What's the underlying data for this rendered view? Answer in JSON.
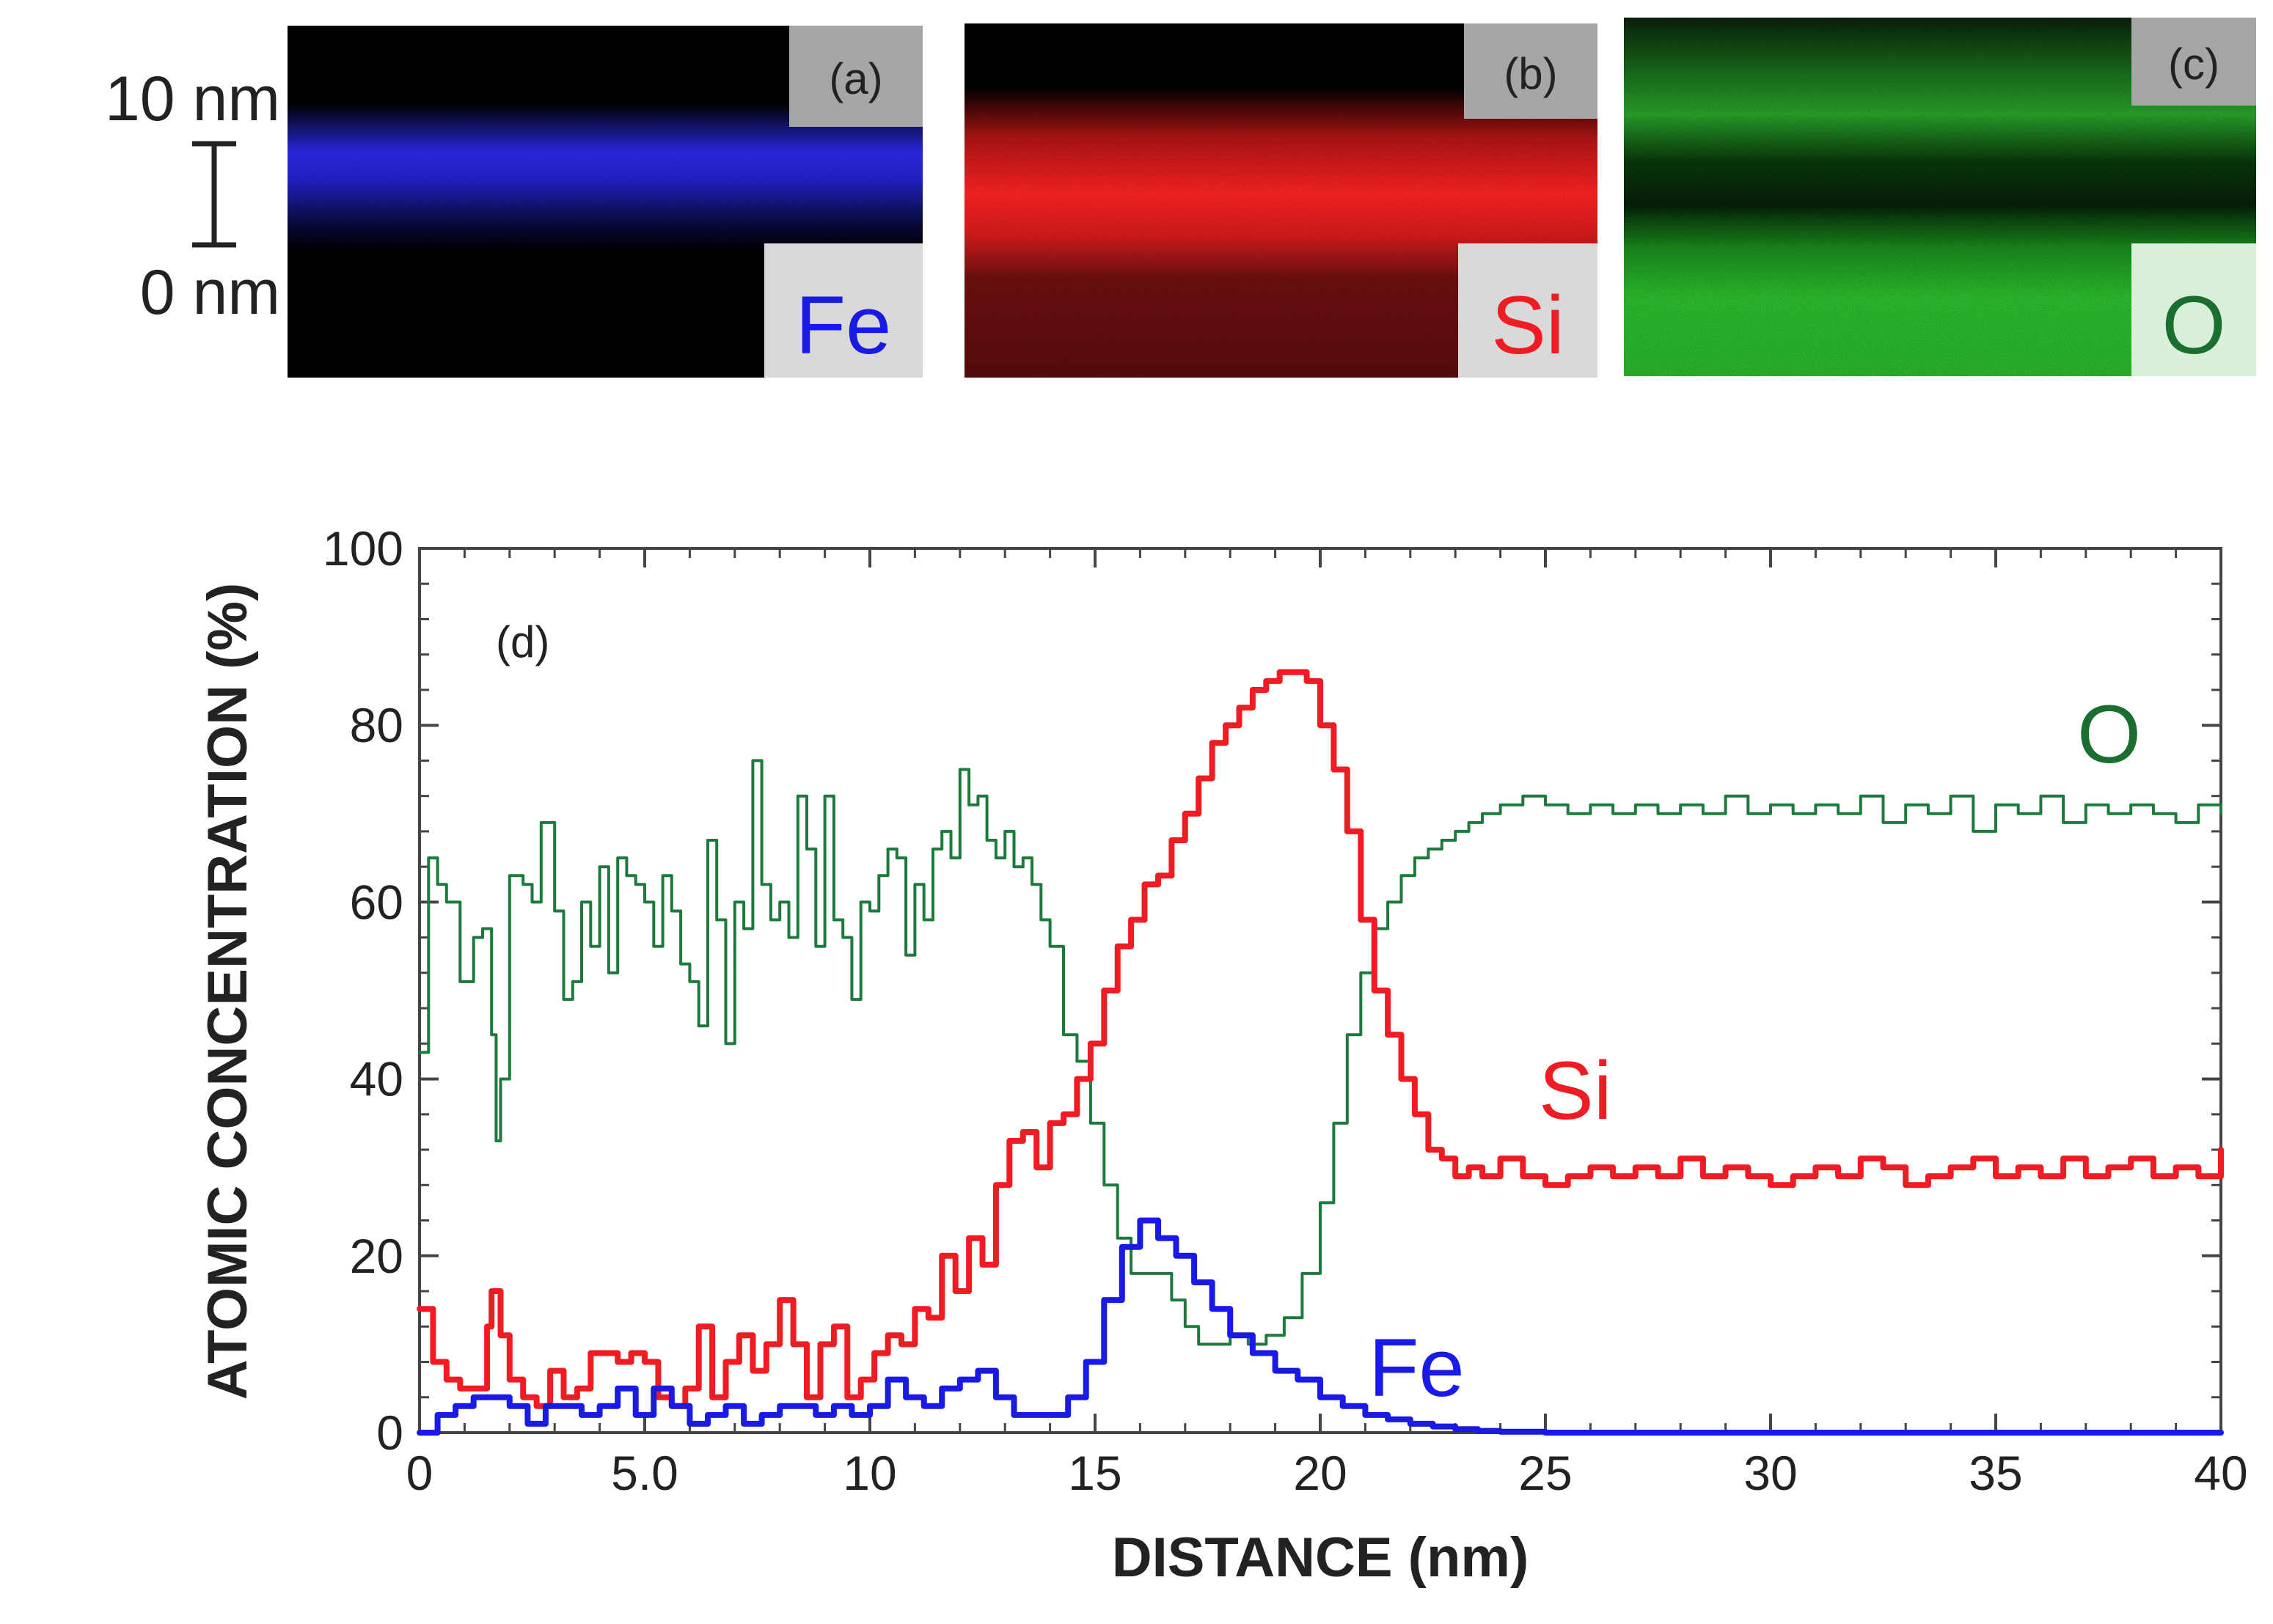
{
  "colors": {
    "fe": "#1a1ae6",
    "si": "#ef1c24",
    "o": "#1d7a3c",
    "o_text": "#1a6e30",
    "frame": "#444444",
    "tag_bg": "#a6a6a6",
    "label_bg": "#d9d9d9"
  },
  "scale_bar": {
    "top_label": "10 nm",
    "bottom_label": "0 nm"
  },
  "panels": [
    {
      "tag": "(a)",
      "element": "Fe",
      "map_color": "#2a2ae8",
      "label_color": "#1a1ae6"
    },
    {
      "tag": "(b)",
      "element": "Si",
      "map_color": "#e81c1c",
      "label_color": "#ef1c24"
    },
    {
      "tag": "(c)",
      "element": "O",
      "map_color": "#22c826",
      "label_color": "#1a6e30"
    }
  ],
  "chart_data": {
    "type": "line",
    "panel_tag": "(d)",
    "xlabel": "DISTANCE (nm)",
    "ylabel": "ATOMIC CONCENTRATION (%)",
    "xlim": [
      0,
      40
    ],
    "ylim": [
      0,
      100
    ],
    "x_ticks": [
      "0",
      "5.0",
      "10",
      "15",
      "20",
      "25",
      "30",
      "35",
      "40"
    ],
    "y_ticks": [
      "0",
      "20",
      "40",
      "60",
      "80",
      "100"
    ],
    "grid": false,
    "series": [
      {
        "name": "O",
        "color": "#1d7a3c",
        "x": [
          0,
          0.2,
          0.4,
          0.6,
          0.9,
          1.2,
          1.4,
          1.6,
          1.7,
          1.8,
          2.0,
          2.3,
          2.5,
          2.7,
          3.0,
          3.2,
          3.4,
          3.6,
          3.8,
          4.0,
          4.2,
          4.4,
          4.6,
          4.8,
          5.0,
          5.2,
          5.4,
          5.6,
          5.8,
          6.0,
          6.2,
          6.4,
          6.6,
          6.8,
          7.0,
          7.2,
          7.4,
          7.6,
          7.8,
          8.0,
          8.2,
          8.4,
          8.6,
          8.8,
          9.0,
          9.2,
          9.4,
          9.6,
          9.8,
          10.0,
          10.2,
          10.4,
          10.6,
          10.8,
          11.0,
          11.2,
          11.4,
          11.6,
          11.8,
          12.0,
          12.2,
          12.4,
          12.6,
          12.8,
          13.0,
          13.2,
          13.4,
          13.6,
          13.8,
          14.0,
          14.3,
          14.6,
          14.9,
          15.2,
          15.5,
          15.8,
          16.1,
          16.4,
          16.7,
          17.0,
          17.3,
          17.6,
          18.0,
          18.4,
          18.8,
          19.2,
          19.6,
          20.0,
          20.3,
          20.6,
          20.9,
          21.2,
          21.5,
          21.8,
          22.1,
          22.4,
          22.7,
          23.0,
          23.3,
          23.6,
          24.0,
          24.5,
          25.0,
          25.5,
          26.0,
          26.5,
          27.0,
          27.5,
          28.0,
          28.5,
          29.0,
          29.5,
          30.0,
          30.5,
          31.0,
          31.5,
          32.0,
          32.5,
          33.0,
          33.5,
          34.0,
          34.5,
          35.0,
          35.5,
          36.0,
          36.5,
          37.0,
          37.5,
          38.0,
          38.5,
          39.0,
          39.5,
          40.0
        ],
        "y": [
          43,
          65,
          62,
          60,
          51,
          56,
          57,
          45,
          33,
          40,
          63,
          62,
          60,
          69,
          59,
          49,
          51,
          60,
          55,
          64,
          52,
          65,
          63,
          62,
          60,
          55,
          63,
          59,
          53,
          51,
          46,
          67,
          58,
          44,
          60,
          57,
          76,
          62,
          58,
          60,
          56,
          72,
          66,
          55,
          72,
          58,
          56,
          49,
          60,
          59,
          63,
          66,
          65,
          54,
          62,
          58,
          66,
          68,
          65,
          75,
          71,
          72,
          67,
          65,
          68,
          64,
          65,
          62,
          58,
          55,
          45,
          42,
          35,
          28,
          22,
          18,
          18,
          18,
          15,
          12,
          10,
          10,
          11,
          10,
          11,
          13,
          18,
          26,
          35,
          45,
          52,
          57,
          60,
          63,
          65,
          66,
          67,
          68,
          69,
          70,
          71,
          72,
          71,
          70,
          71,
          70,
          71,
          70,
          71,
          70,
          72,
          70,
          71,
          70,
          71,
          70,
          72,
          69,
          71,
          70,
          72,
          68,
          71,
          70,
          72,
          69,
          71,
          70,
          71,
          70,
          69,
          71,
          70
        ]
      },
      {
        "name": "Si",
        "color": "#ef1c24",
        "x": [
          0,
          0.3,
          0.6,
          0.9,
          1.2,
          1.5,
          1.6,
          1.8,
          2.0,
          2.3,
          2.6,
          2.9,
          3.2,
          3.5,
          3.8,
          4.1,
          4.4,
          4.7,
          5.0,
          5.3,
          5.6,
          5.9,
          6.2,
          6.5,
          6.8,
          7.1,
          7.4,
          7.7,
          8.0,
          8.3,
          8.6,
          8.9,
          9.2,
          9.5,
          9.8,
          10.1,
          10.4,
          10.7,
          11.0,
          11.3,
          11.6,
          11.9,
          12.2,
          12.5,
          12.8,
          13.1,
          13.4,
          13.7,
          14.0,
          14.3,
          14.6,
          14.9,
          15.2,
          15.5,
          15.8,
          16.1,
          16.4,
          16.7,
          17.0,
          17.3,
          17.6,
          17.9,
          18.2,
          18.5,
          18.8,
          19.1,
          19.4,
          19.7,
          20.0,
          20.3,
          20.6,
          20.9,
          21.2,
          21.5,
          21.8,
          22.1,
          22.4,
          22.7,
          23.0,
          23.3,
          23.6,
          24.0,
          24.5,
          25.0,
          25.5,
          26.0,
          26.5,
          27.0,
          27.5,
          28.0,
          28.5,
          29.0,
          29.5,
          30.0,
          30.5,
          31.0,
          31.5,
          32.0,
          32.5,
          33.0,
          33.5,
          34.0,
          34.5,
          35.0,
          35.5,
          36.0,
          36.5,
          37.0,
          37.5,
          38.0,
          38.5,
          39.0,
          39.5,
          40.0
        ],
        "y": [
          14,
          8,
          6,
          5,
          5,
          12,
          16,
          11,
          6,
          4,
          3,
          7,
          4,
          5,
          9,
          9,
          8,
          9,
          8,
          4,
          3,
          5,
          12,
          4,
          8,
          11,
          7,
          10,
          15,
          10,
          4,
          10,
          12,
          4,
          6,
          9,
          11,
          10,
          14,
          13,
          20,
          16,
          22,
          19,
          28,
          33,
          34,
          30,
          35,
          36,
          40,
          44,
          50,
          55,
          58,
          62,
          63,
          67,
          70,
          74,
          78,
          80,
          82,
          84,
          85,
          86,
          86,
          85,
          80,
          75,
          68,
          58,
          50,
          45,
          40,
          36,
          32,
          31,
          29,
          30,
          29,
          31,
          29,
          28,
          29,
          30,
          29,
          30,
          29,
          31,
          29,
          30,
          29,
          28,
          29,
          30,
          29,
          31,
          30,
          28,
          29,
          30,
          31,
          29,
          30,
          29,
          31,
          29,
          30,
          31,
          29,
          30,
          29,
          32
        ]
      },
      {
        "name": "Fe",
        "color": "#1a1ae6",
        "x": [
          0,
          0.4,
          0.8,
          1.2,
          1.6,
          2.0,
          2.4,
          2.8,
          3.2,
          3.6,
          4.0,
          4.4,
          4.8,
          5.2,
          5.6,
          6.0,
          6.4,
          6.8,
          7.2,
          7.6,
          8.0,
          8.4,
          8.8,
          9.2,
          9.6,
          10.0,
          10.4,
          10.8,
          11.2,
          11.6,
          12.0,
          12.4,
          12.8,
          13.2,
          13.6,
          14.0,
          14.4,
          14.8,
          15.2,
          15.6,
          16.0,
          16.4,
          16.8,
          17.2,
          17.6,
          18.0,
          18.5,
          19.0,
          19.5,
          20.0,
          20.5,
          21.0,
          21.5,
          22.0,
          22.5,
          23.0,
          23.5,
          24.0,
          25.0,
          26.0,
          28.0,
          30.0,
          32.0,
          34.0,
          36.0,
          38.0,
          40.0
        ],
        "y": [
          0,
          2,
          3,
          4,
          4,
          3,
          1,
          3,
          3,
          2,
          3,
          5,
          2,
          5,
          3,
          1,
          2,
          3,
          1,
          2,
          3,
          3,
          2,
          3,
          2,
          3,
          6,
          4,
          3,
          5,
          6,
          7,
          4,
          2,
          2,
          2,
          4,
          8,
          15,
          21,
          24,
          22,
          20,
          17,
          14,
          11,
          9,
          7,
          6,
          4,
          3,
          2,
          1.5,
          1,
          0.7,
          0.4,
          0.2,
          0.1,
          0,
          0,
          0,
          0,
          0,
          0,
          0,
          0,
          0
        ]
      }
    ]
  }
}
